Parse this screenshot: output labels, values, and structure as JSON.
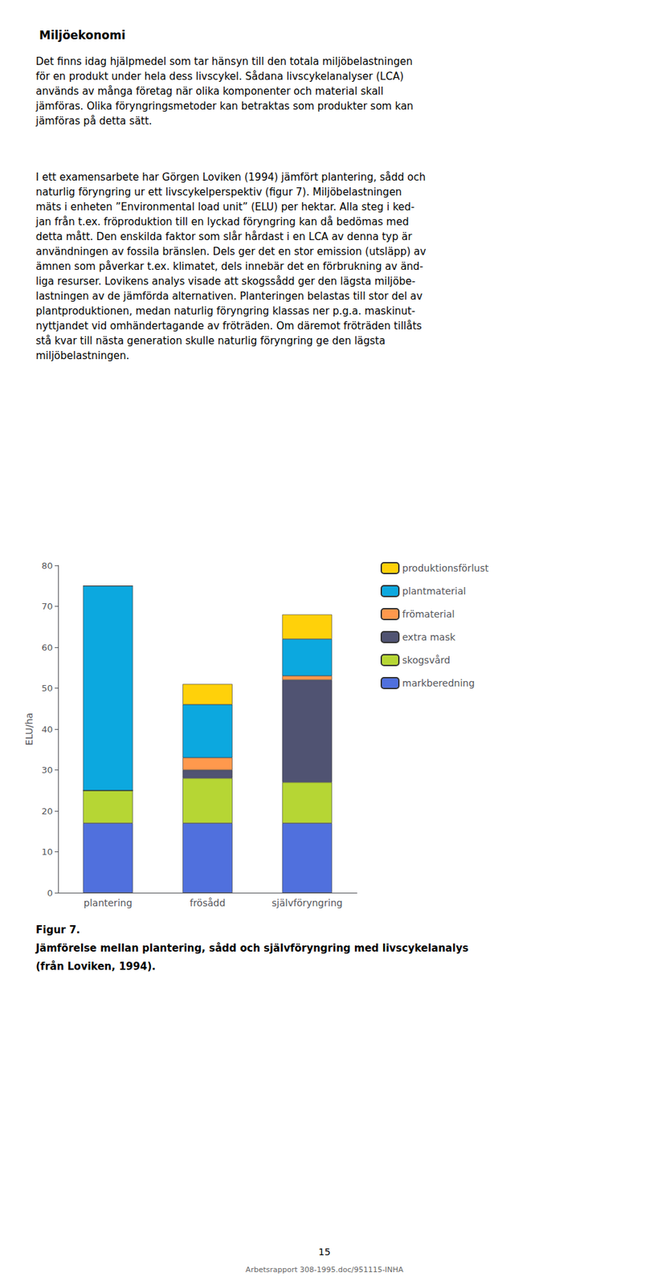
{
  "chart_data": {
    "type": "bar",
    "stacked": true,
    "title": "Miljöekonomi",
    "categories": [
      "plantering",
      "frösådd",
      "självföryngring"
    ],
    "series": [
      {
        "name": "markberedning",
        "values": [
          17,
          17,
          17
        ]
      },
      {
        "name": "skogsvård",
        "values": [
          8,
          11,
          10
        ]
      },
      {
        "name": "extra mask",
        "values": [
          0,
          2,
          25
        ]
      },
      {
        "name": "frömaterial",
        "values": [
          0,
          3,
          1
        ]
      },
      {
        "name": "plantmaterial",
        "values": [
          50,
          13,
          9
        ]
      },
      {
        "name": "produktionsförlust",
        "values": [
          0,
          5,
          6
        ]
      }
    ],
    "ylabel": "ELU/ha",
    "ylim": [
      0,
      80
    ],
    "yticks": [
      0,
      10,
      20,
      30,
      40,
      50,
      60,
      70,
      80
    ],
    "grid": false,
    "legend": "right",
    "annotations": [
      "Det finns idag hjälpmedel som tar hänsyn till den totala miljöbelastningen\nför en produkt under hela dess livscykel. Sådana livscykelanalyser (LCA)\nanvänds av många företag när olika komponenter och material skall\njämföras. Olika föryngringsmetoder kan betraktas som produkter som kan\njämföras på detta sätt.",
      "I ett examensarbete har Görgen Loviken (1994) jämfört plantering, sådd och\nnaturlig föryngring ur ett livscykelperspektiv (figur 7). Miljöbelastningen\nmäts i enheten ”Environmental load unit” (ELU) per hektar. Alla steg i ked-\njan från t.ex. fröproduktion till en lyckad föryngring kan då bedömas med\ndetta mått. Den enskilda faktor som slår hårdast i en LCA av denna typ är\nanvändningen av fossila bränslen. Dels ger det en stor emission (utsläpp) av\nämnen som påverkar t.ex. klimatet, dels innebär det en förbrukning av änd-\nliga resurser. Lovikens analys visade att skogssådd ger den lägsta miljöbe-\nlastningen av de jämförda alternativen. Planteringen belastas till stor del av\nplantproduktionen, medan naturlig föryngring klassas ner p.g.a. maskinut-\nnyttjandet vid omhändertagande av fröträden. Om däremot fröträden tillåts\nstå kvar till nästa generation skulle naturlig föryngring ge den lägsta\nmiljöbelastningen.",
      "Figur 7.",
      "Jämförelse mellan plantering, sådd och självföryngring med livscykelanalys",
      "(från Loviken, 1994).",
      "15",
      "Arbetsrapport 308-1995.doc/951115-INHA"
    ]
  }
}
